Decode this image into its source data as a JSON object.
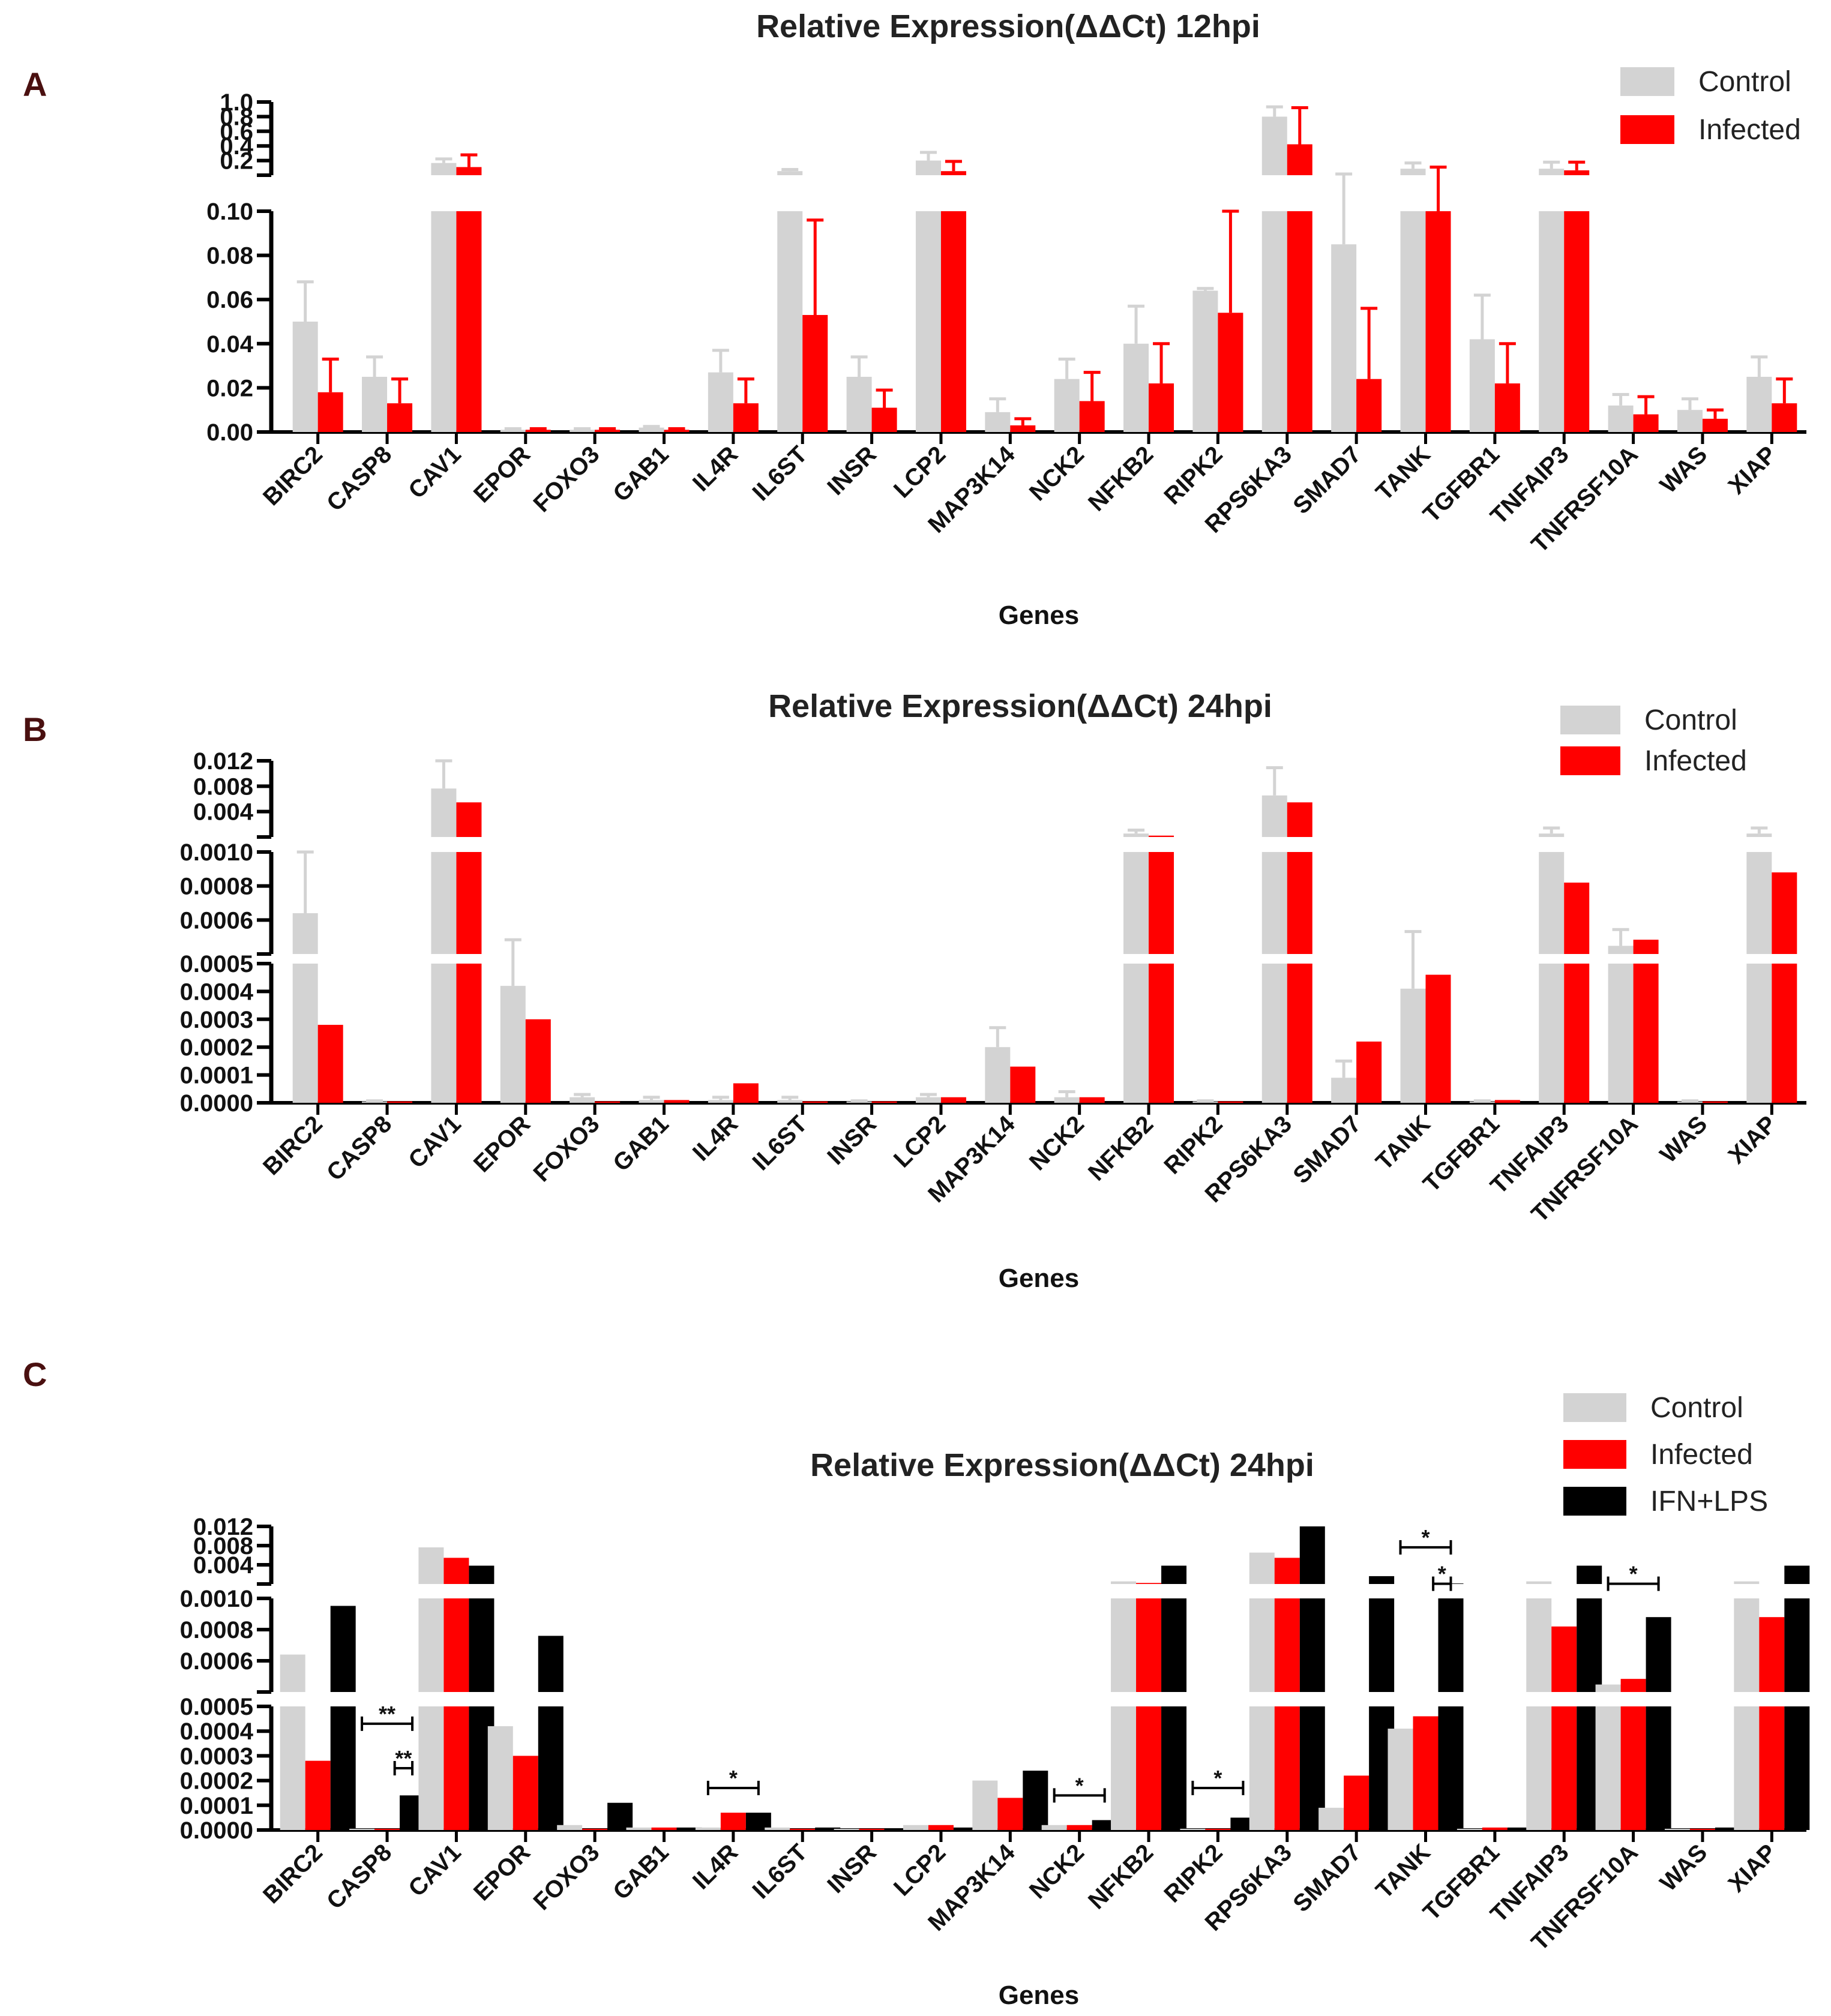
{
  "chart_data": [
    {
      "panel": "A",
      "type": "bar",
      "title": "Relative Expression(ΔΔCt) 12hpi",
      "xlabel": "Genes",
      "ylabel": "",
      "legend_position": "top-right",
      "categories": [
        "BIRC2",
        "CASP8",
        "CAV1",
        "EPOR",
        "FOXO3",
        "GAB1",
        "IL4R",
        "IL6ST",
        "INSR",
        "LCP2",
        "MAP3K14",
        "NCK2",
        "NFKB2",
        "RIPK2",
        "RPS6KA3",
        "SMAD7",
        "TANK",
        "TGFBR1",
        "TNFAIP3",
        "TNFRSF10A",
        "WAS",
        "XIAP"
      ],
      "axis_segments": [
        {
          "range": [
            0,
            0.1
          ],
          "ticks": [
            "0.00",
            "0.02",
            "0.04",
            "0.06",
            "0.08",
            "0.10"
          ]
        },
        {
          "range": [
            0.1,
            1.0
          ],
          "ticks": [
            "0.2",
            "0.4",
            "0.6",
            "0.8",
            "1.0"
          ]
        }
      ],
      "series": [
        {
          "name": "Control",
          "color": "#d3d3d3",
          "values": [
            0.05,
            0.025,
            0.25,
            0.001,
            0.001,
            0.002,
            0.027,
            0.15,
            0.025,
            0.28,
            0.009,
            0.024,
            0.04,
            0.064,
            0.82,
            0.085,
            0.18,
            0.042,
            0.18,
            0.012,
            0.01,
            0.025
          ],
          "errors": [
            0.018,
            0.009,
            0.05,
            0.0005,
            0.0005,
            0.0005,
            0.01,
            0.02,
            0.009,
            0.1,
            0.006,
            0.009,
            0.017,
            0.001,
            0.12,
            0.03,
            0.07,
            0.02,
            0.08,
            0.005,
            0.005,
            0.009
          ]
        },
        {
          "name": "Infected",
          "color": "#ff0000",
          "values": [
            0.018,
            0.013,
            0.2,
            0.001,
            0.001,
            0.001,
            0.013,
            0.053,
            0.011,
            0.15,
            0.003,
            0.014,
            0.022,
            0.054,
            0.48,
            0.024,
            0.1,
            0.022,
            0.16,
            0.008,
            0.006,
            0.013
          ],
          "errors": [
            0.015,
            0.011,
            0.15,
            0.0005,
            0.0005,
            0.0005,
            0.011,
            0.043,
            0.008,
            0.12,
            0.003,
            0.013,
            0.018,
            0.046,
            0.45,
            0.032,
            0.1,
            0.018,
            0.1,
            0.008,
            0.004,
            0.011
          ]
        }
      ],
      "significance": []
    },
    {
      "panel": "B",
      "type": "bar",
      "title": "Relative Expression(ΔΔCt) 24hpi",
      "xlabel": "Genes",
      "ylabel": "",
      "legend_position": "top-right",
      "categories": [
        "BIRC2",
        "CASP8",
        "CAV1",
        "EPOR",
        "FOXO3",
        "GAB1",
        "IL4R",
        "IL6ST",
        "INSR",
        "LCP2",
        "MAP3K14",
        "NCK2",
        "NFKB2",
        "RIPK2",
        "RPS6KA3",
        "SMAD7",
        "TANK",
        "TGFBR1",
        "TNFAIP3",
        "TNFRSF10A",
        "WAS",
        "XIAP"
      ],
      "axis_segments": [
        {
          "range": [
            0,
            0.0005
          ],
          "ticks": [
            "0.0000",
            "0.0001",
            "0.0002",
            "0.0003",
            "0.0004",
            "0.0005"
          ]
        },
        {
          "range": [
            0.0005,
            0.001
          ],
          "ticks": [
            "0.0006",
            "0.0008",
            "0.0010"
          ]
        },
        {
          "range": [
            0.001,
            0.012
          ],
          "ticks": [
            "0.004",
            "0.008",
            "0.012"
          ]
        }
      ],
      "series": [
        {
          "name": "Control",
          "color": "#d3d3d3",
          "values": [
            0.0007,
            5e-06,
            0.008,
            0.00042,
            2e-05,
            1e-05,
            1e-05,
            1e-05,
            5e-06,
            2e-05,
            0.0002,
            2e-05,
            0.0015,
            5e-06,
            0.007,
            9e-05,
            0.00041,
            5e-06,
            0.0015,
            0.00054,
            5e-06,
            0.0015
          ],
          "errors": [
            0.0003,
            2e-06,
            0.004,
            0.00015,
            1e-05,
            1e-05,
            1e-05,
            1e-05,
            2e-06,
            1e-05,
            7e-05,
            2e-05,
            0.0005,
            2e-06,
            0.004,
            6e-05,
            0.0002,
            2e-06,
            0.0008,
            8e-05,
            2e-06,
            0.0008
          ]
        },
        {
          "name": "Infected",
          "color": "#ff0000",
          "values": [
            0.00028,
            5e-06,
            0.006,
            0.0003,
            5e-06,
            1e-05,
            7e-05,
            5e-06,
            5e-06,
            2e-05,
            0.00013,
            2e-05,
            0.0012,
            5e-06,
            0.006,
            0.00022,
            0.00046,
            1e-05,
            0.00085,
            0.00057,
            5e-06,
            0.0009
          ],
          "errors": [
            0,
            0,
            0,
            0,
            0,
            0,
            0,
            0,
            0,
            0,
            0,
            0,
            0,
            0,
            0,
            0,
            0,
            0,
            0,
            0,
            0,
            0
          ]
        }
      ],
      "significance": []
    },
    {
      "panel": "C",
      "type": "bar",
      "title": "Relative Expression(ΔΔCt) 24hpi",
      "xlabel": "Genes",
      "ylabel": "",
      "legend_position": "top-right",
      "categories": [
        "BIRC2",
        "CASP8",
        "CAV1",
        "EPOR",
        "FOXO3",
        "GAB1",
        "IL4R",
        "IL6ST",
        "INSR",
        "LCP2",
        "MAP3K14",
        "NCK2",
        "NFKB2",
        "RIPK2",
        "RPS6KA3",
        "SMAD7",
        "TANK",
        "TGFBR1",
        "TNFAIP3",
        "TNFRSF10A",
        "WAS",
        "XIAP"
      ],
      "axis_segments": [
        {
          "range": [
            0,
            0.0005
          ],
          "ticks": [
            "0.0000",
            "0.0001",
            "0.0002",
            "0.0003",
            "0.0004",
            "0.0005"
          ]
        },
        {
          "range": [
            0.0005,
            0.001
          ],
          "ticks": [
            "0.0006",
            "0.0008",
            "0.0010"
          ]
        },
        {
          "range": [
            0.001,
            0.012
          ],
          "ticks": [
            "0.004",
            "0.008",
            "0.012"
          ]
        }
      ],
      "series": [
        {
          "name": "Control",
          "color": "#d3d3d3",
          "values": [
            0.0007,
            5e-06,
            0.008,
            0.00042,
            2e-05,
            1e-05,
            1e-05,
            1e-05,
            5e-06,
            2e-05,
            0.0002,
            2e-05,
            0.0015,
            5e-06,
            0.007,
            9e-05,
            0.00041,
            5e-06,
            0.0015,
            0.00054,
            5e-06,
            0.0015
          ]
        },
        {
          "name": "Infected",
          "color": "#ff0000",
          "values": [
            0.00028,
            5e-06,
            0.006,
            0.0003,
            5e-06,
            1e-05,
            7e-05,
            5e-06,
            5e-06,
            2e-05,
            0.00013,
            2e-05,
            0.0012,
            5e-06,
            0.006,
            0.00022,
            0.00046,
            1e-05,
            0.00085,
            0.00057,
            5e-06,
            0.0009
          ]
        },
        {
          "name": "IFN+LPS",
          "color": "#000000",
          "values": [
            0.00096,
            0.00014,
            0.0045,
            0.0008,
            0.00011,
            1e-05,
            7e-05,
            1e-05,
            5e-06,
            1e-05,
            0.00024,
            4e-05,
            0.0045,
            5e-05,
            0.012,
            0.0025,
            0.0011,
            1e-05,
            0.0045,
            0.0009,
            1e-05,
            0.0045
          ]
        }
      ],
      "significance": [
        {
          "category": "CASP8",
          "label": "**",
          "level": 0.00043
        },
        {
          "category": "CASP8",
          "label": "**",
          "level": 0.00025,
          "short": true
        },
        {
          "category": "IL4R",
          "label": "*",
          "level": 0.00017
        },
        {
          "category": "NCK2",
          "label": "*",
          "level": 0.00014
        },
        {
          "category": "RIPK2",
          "label": "*",
          "level": 0.00017
        },
        {
          "category": "TANK",
          "label": "*",
          "level": 0.008
        },
        {
          "category": "TANK",
          "label": "*",
          "level": 0.00105,
          "short": true
        },
        {
          "category": "TNFRSF10A",
          "label": "*",
          "level": 0.00105
        }
      ]
    }
  ]
}
